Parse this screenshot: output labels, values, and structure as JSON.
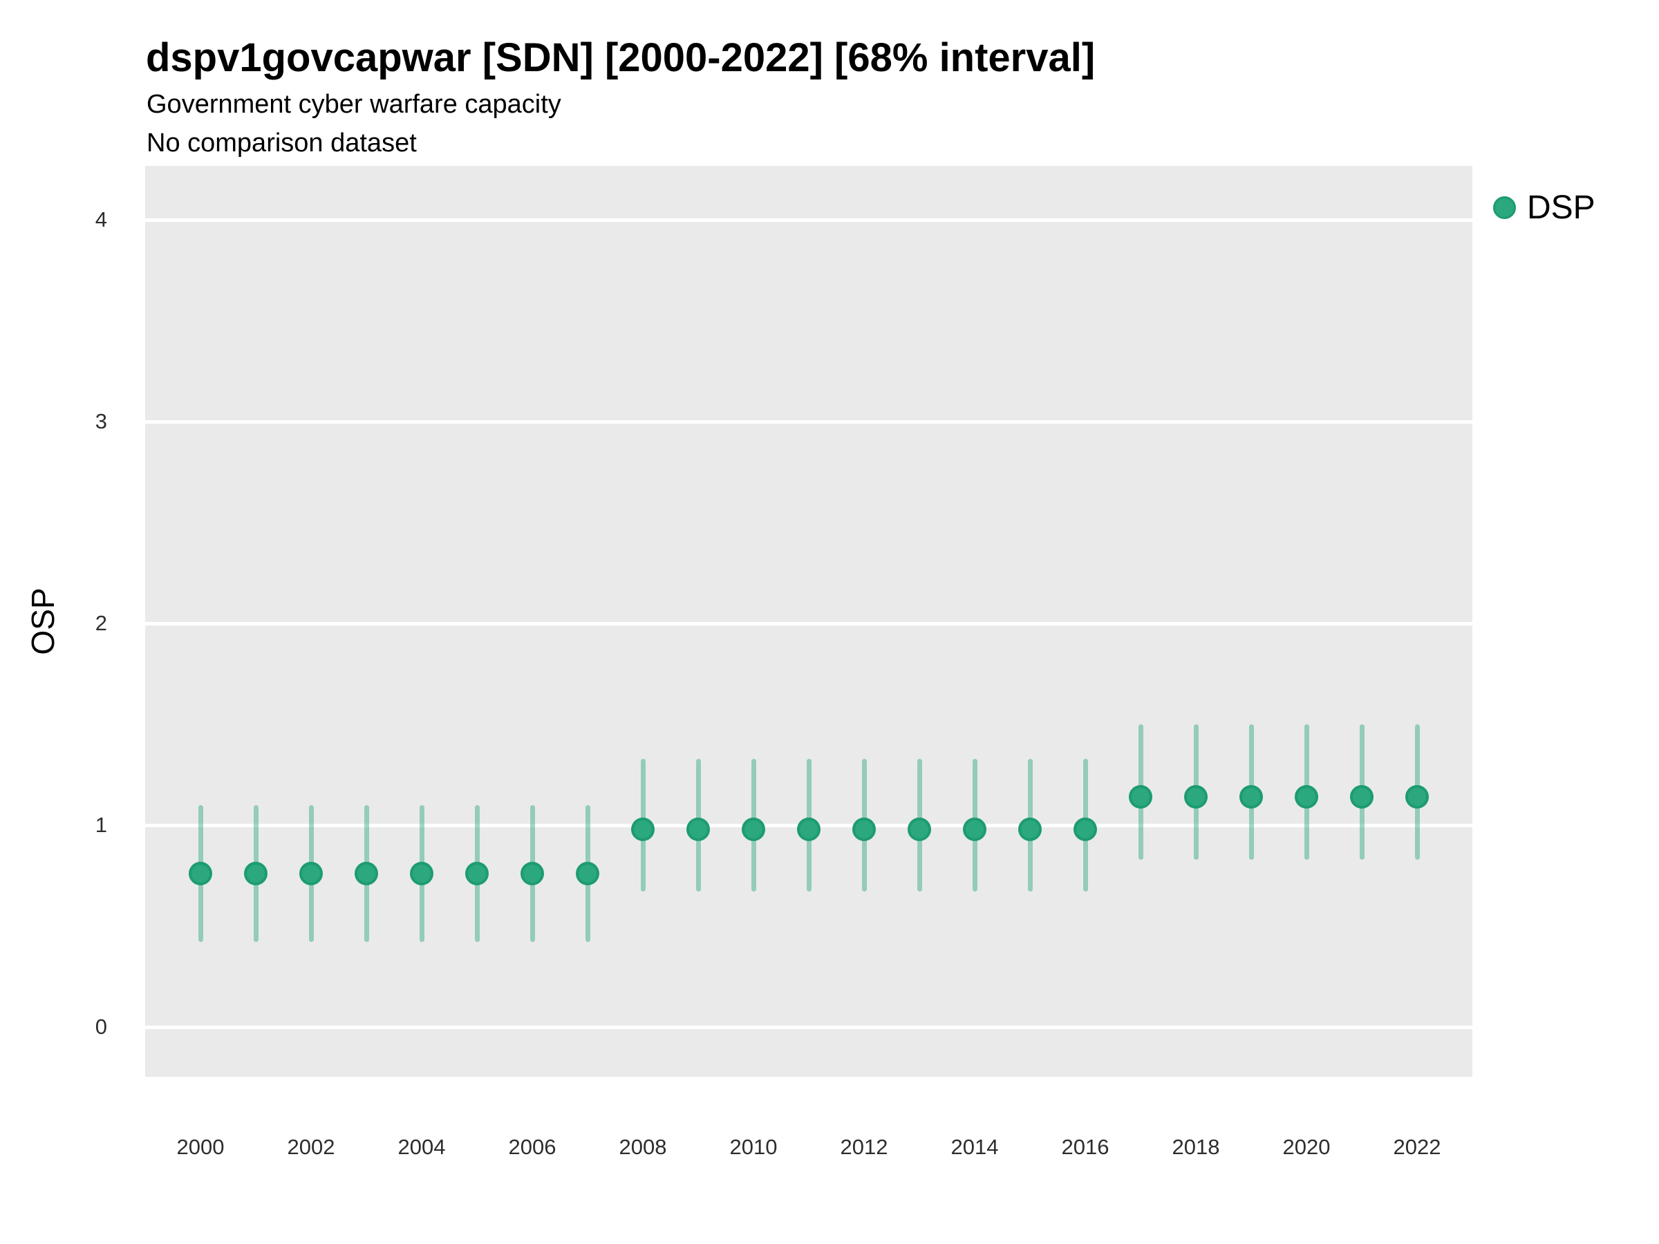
{
  "header": {
    "title": "dspv1govcapwar [SDN] [2000-2022] [68% interval]",
    "subtitle": "Government cyber warfare capacity",
    "note": "No comparison dataset"
  },
  "legend": {
    "position": "right",
    "items": [
      {
        "label": "DSP",
        "marker": "circle-icon",
        "color": "#2ba87d"
      }
    ]
  },
  "colors": {
    "panel_bg": "#eaeaea",
    "gridline": "#ffffff",
    "point_fill": "#2ba87d",
    "point_stroke": "#1d9c6f",
    "interval_bar": "rgba(43,168,125,0.45)",
    "tick_text": "#2d2d2d",
    "title_text": "#000000"
  },
  "chart_data": {
    "type": "scatter",
    "title": "dspv1govcapwar [SDN] [2000-2022] [68% interval]",
    "subtitle": "Government cyber warfare capacity",
    "note": "No comparison dataset",
    "interval": "68%",
    "xlabel": "",
    "ylabel": "OSP",
    "legend_position": "right",
    "grid": "horizontal-major-only",
    "xlim": [
      1999,
      2023
    ],
    "ylim": [
      -0.25,
      4.27
    ],
    "x_ticks": [
      2000,
      2002,
      2004,
      2006,
      2008,
      2010,
      2012,
      2014,
      2016,
      2018,
      2020,
      2022
    ],
    "y_ticks": [
      0,
      1,
      2,
      3,
      4
    ],
    "series": [
      {
        "name": "DSP",
        "x": [
          2000,
          2001,
          2002,
          2003,
          2004,
          2005,
          2006,
          2007,
          2008,
          2009,
          2010,
          2011,
          2012,
          2013,
          2014,
          2015,
          2016,
          2017,
          2018,
          2019,
          2020,
          2021,
          2022
        ],
        "y": [
          0.76,
          0.76,
          0.76,
          0.76,
          0.76,
          0.76,
          0.76,
          0.76,
          0.98,
          0.98,
          0.98,
          0.98,
          0.98,
          0.98,
          0.98,
          0.98,
          0.98,
          1.14,
          1.14,
          1.14,
          1.14,
          1.14,
          1.14
        ],
        "y_lo": [
          0.42,
          0.42,
          0.42,
          0.42,
          0.42,
          0.42,
          0.42,
          0.42,
          0.67,
          0.67,
          0.67,
          0.67,
          0.67,
          0.67,
          0.67,
          0.67,
          0.67,
          0.83,
          0.83,
          0.83,
          0.83,
          0.83,
          0.83
        ],
        "y_hi": [
          1.1,
          1.1,
          1.1,
          1.1,
          1.1,
          1.1,
          1.1,
          1.1,
          1.33,
          1.33,
          1.33,
          1.33,
          1.33,
          1.33,
          1.33,
          1.33,
          1.33,
          1.5,
          1.5,
          1.5,
          1.5,
          1.5,
          1.5
        ]
      }
    ]
  }
}
